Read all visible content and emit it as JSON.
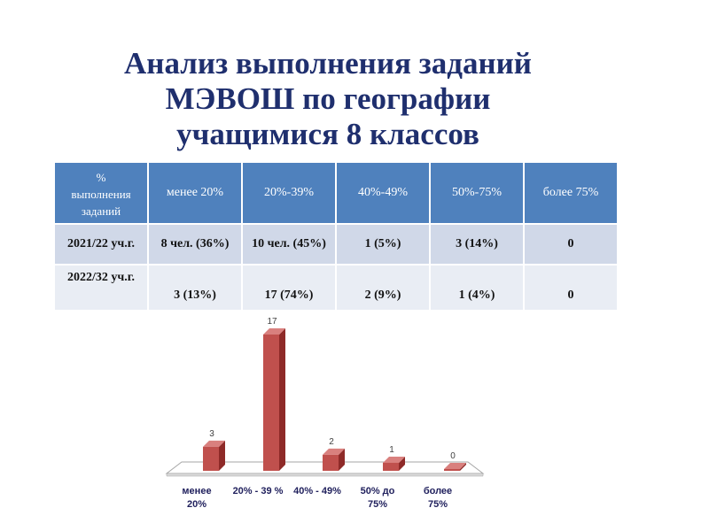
{
  "title": {
    "line1": "Анализ выполнения заданий",
    "line2": "МЭВОШ по географии",
    "line3": "учащимися 8 классов"
  },
  "table": {
    "header_first": [
      "%",
      "выполнения",
      "заданий"
    ],
    "headers": [
      "менее 20%",
      "20%-39%",
      "40%-49%",
      "50%-75%",
      "более 75%"
    ],
    "rows": [
      {
        "label": "2021/22 уч.г.",
        "cells": [
          "8 чел. (36%)",
          "10 чел. (45%)",
          "1 (5%)",
          "3 (14%)",
          "0"
        ]
      },
      {
        "label": "2022/32 уч.г.",
        "cells": [
          "3 (13%)",
          "17 (74%)",
          "2 (9%)",
          "1 (4%)",
          "0"
        ]
      }
    ]
  },
  "chart_data": {
    "type": "bar",
    "categories": [
      "менее 20%",
      "20% - 39 %",
      "40% - 49%",
      "50% до 75%",
      "более 75%"
    ],
    "values": [
      3,
      17,
      2,
      1,
      0
    ],
    "data_labels": [
      "3",
      "17",
      "2",
      "1",
      "0"
    ],
    "title": "",
    "xlabel": "",
    "ylabel": "",
    "ylim": [
      0,
      17
    ],
    "color": "#c0504d",
    "grid": false,
    "legend": "none",
    "three_d": true
  }
}
